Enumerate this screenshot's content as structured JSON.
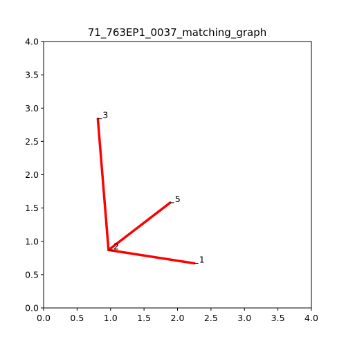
{
  "chart_data": {
    "type": "line",
    "title": "71_763EP1_0037_matching_graph",
    "xlabel": "",
    "ylabel": "",
    "xlim": [
      0.0,
      4.0
    ],
    "ylim": [
      0.0,
      4.0
    ],
    "grid": false,
    "x_ticks": [
      "0.0",
      "0.5",
      "1.0",
      "1.5",
      "2.0",
      "2.5",
      "3.0",
      "3.5",
      "4.0"
    ],
    "y_ticks": [
      "0.0",
      "0.5",
      "1.0",
      "1.5",
      "2.0",
      "2.5",
      "3.0",
      "3.5",
      "4.0"
    ],
    "edge_color": "#ff0000",
    "nodes": [
      {
        "id": "1",
        "x": 2.25,
        "y": 0.67
      },
      {
        "id": "2",
        "x": 0.97,
        "y": 0.87
      },
      {
        "id": "3",
        "x": 0.81,
        "y": 2.84
      },
      {
        "id": "5",
        "x": 1.89,
        "y": 1.58
      }
    ],
    "edges": [
      {
        "from": "2",
        "to": "3"
      },
      {
        "from": "2",
        "to": "5"
      },
      {
        "from": "2",
        "to": "1"
      }
    ]
  }
}
